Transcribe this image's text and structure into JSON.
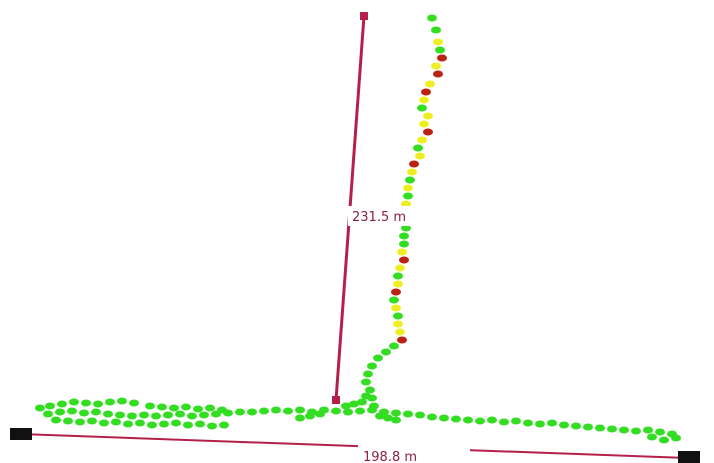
{
  "measurements": {
    "vertical": {
      "distance_label": "231.5 m",
      "color": "#b5204a"
    },
    "horizontal": {
      "distance_label": "198.8 m",
      "color": "#b5204a"
    }
  },
  "point_colors": {
    "green": "#33dd22",
    "yellow": "#eeee22",
    "red": "#bb2211"
  },
  "legend": []
}
